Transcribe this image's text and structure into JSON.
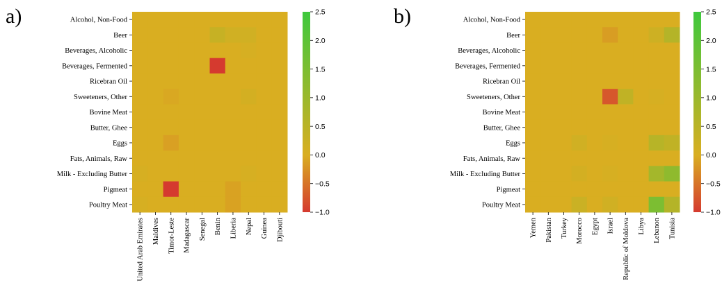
{
  "chart_data": [
    {
      "type": "heatmap",
      "panel_label": "a)",
      "rows": [
        "Alcohol, Non-Food",
        "Beer",
        "Beverages, Alcoholic",
        "Beverages, Fermented",
        "Ricebran Oil",
        "Sweeteners, Other",
        "Bovine Meat",
        "Butter, Ghee",
        "Eggs",
        "Fats, Animals, Raw",
        "Milk - Excluding Butter",
        "Pigmeat",
        "Poultry Meat"
      ],
      "columns": [
        "United Arab Emirates",
        "Maldives",
        "Timor-Leste",
        "Madagascar",
        "Senegal",
        "Benin",
        "Liberia",
        "Nepal",
        "Guinea",
        "Djibouti"
      ],
      "values": [
        [
          0,
          0,
          0,
          0,
          0,
          0,
          0,
          0,
          0,
          0
        ],
        [
          0,
          0,
          0,
          0,
          0,
          0.3,
          0.15,
          0.15,
          0,
          0
        ],
        [
          0,
          0,
          0,
          0,
          0,
          0,
          0,
          0.05,
          0,
          0
        ],
        [
          0,
          0,
          0,
          0,
          0,
          -1.0,
          0,
          0,
          0,
          0
        ],
        [
          0,
          0,
          0,
          0,
          0,
          0,
          0,
          0,
          0,
          0
        ],
        [
          0,
          0,
          -0.05,
          0,
          0,
          0,
          0,
          0.1,
          0,
          0
        ],
        [
          0,
          0,
          0,
          0,
          0,
          0,
          0,
          0,
          0,
          0
        ],
        [
          0,
          0,
          0,
          0,
          0,
          0,
          0,
          0,
          0,
          0
        ],
        [
          0,
          0,
          -0.12,
          0,
          0,
          0,
          0,
          0,
          0,
          0
        ],
        [
          0,
          0,
          0,
          0,
          0,
          0,
          0,
          0,
          0,
          0
        ],
        [
          0.05,
          0,
          0,
          0,
          0,
          0,
          0,
          0.05,
          0,
          0
        ],
        [
          0,
          0,
          -1.0,
          0,
          0,
          0,
          -0.1,
          0,
          0,
          0
        ],
        [
          0.05,
          0,
          0,
          0,
          0,
          0,
          -0.1,
          0,
          0,
          0
        ]
      ],
      "colorbar": {
        "min": -1.0,
        "max": 2.5,
        "ticks": [
          "2.5",
          "2.0",
          "1.5",
          "1.0",
          "0.5",
          "0.0",
          "−0.5",
          "−1.0"
        ]
      }
    },
    {
      "type": "heatmap",
      "panel_label": "b)",
      "rows": [
        "Alcohol, Non-Food",
        "Beer",
        "Beverages, Alcoholic",
        "Beverages, Fermented",
        "Ricebran Oil",
        "Sweeteners, Other",
        "Bovine Meat",
        "Butter, Ghee",
        "Eggs",
        "Fats, Animals, Raw",
        "Milk - Excluding Butter",
        "Pigmeat",
        "Poultry Meat"
      ],
      "columns": [
        "Yemen",
        "Pakistan",
        "Turkey",
        "Morocco",
        "Egypt",
        "Israel",
        "Republic of Moldova",
        "Libya",
        "Lebanon",
        "Tunisia"
      ],
      "values": [
        [
          0,
          0,
          0,
          0,
          0,
          0,
          0,
          0,
          0,
          0
        ],
        [
          0,
          0,
          0,
          0,
          0,
          -0.15,
          0,
          0,
          0.2,
          0.6
        ],
        [
          0,
          0,
          0,
          0,
          0,
          0,
          0,
          0,
          0,
          0
        ],
        [
          0,
          0,
          0,
          0,
          0,
          0,
          0,
          0,
          0,
          0
        ],
        [
          0,
          0,
          0,
          0,
          0,
          0,
          0,
          0,
          0,
          0
        ],
        [
          0,
          0,
          0,
          0,
          0,
          -0.75,
          0.4,
          0,
          0.05,
          0
        ],
        [
          0,
          0,
          0,
          0,
          0,
          0,
          0,
          0,
          0,
          0
        ],
        [
          0,
          0,
          0,
          0,
          0,
          0,
          0,
          0,
          0,
          0
        ],
        [
          0,
          0,
          0,
          0.15,
          0,
          0.05,
          0,
          0,
          0.55,
          0.4
        ],
        [
          0,
          0,
          0,
          0,
          0,
          0,
          0,
          0,
          0,
          0
        ],
        [
          0,
          0,
          0,
          0.1,
          0,
          0.05,
          0,
          0,
          0.85,
          1.2
        ],
        [
          0,
          0,
          0,
          0,
          0,
          0,
          0,
          0,
          0,
          0
        ],
        [
          0,
          0,
          0,
          0.25,
          0,
          0.15,
          0,
          0,
          1.5,
          0.6
        ]
      ],
      "colorbar": {
        "min": -1.0,
        "max": 2.5,
        "ticks": [
          "2.5",
          "2.0",
          "1.5",
          "1.0",
          "0.5",
          "0.0",
          "−0.5",
          "−1.0"
        ]
      }
    }
  ],
  "colors": {
    "negative": "#d53a2f",
    "zero": "#d9ae21",
    "positive": "#3ec83d"
  }
}
